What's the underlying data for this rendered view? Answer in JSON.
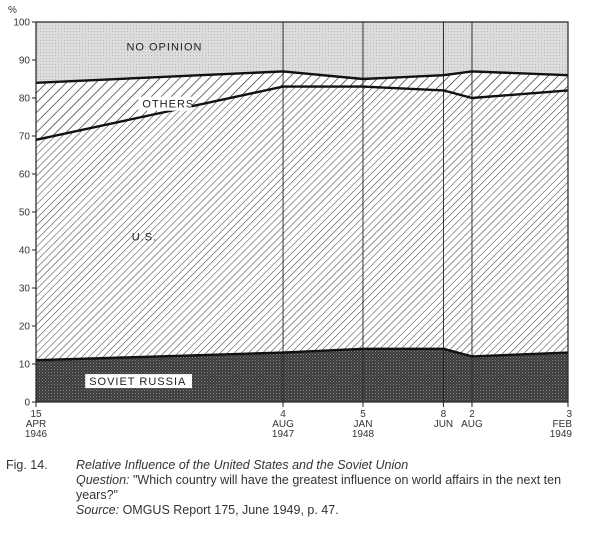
{
  "chart_data": {
    "type": "area",
    "stacked": true,
    "y_unit": "%",
    "ylim": [
      0,
      100
    ],
    "y_ticks": [
      0,
      10,
      20,
      30,
      40,
      50,
      60,
      70,
      80,
      90,
      100
    ],
    "x_dates": [
      "1946-04-15",
      "1947-08-04",
      "1948-01-05",
      "1948-06-08",
      "1948-08-02",
      "1949-02-03"
    ],
    "x_tick_labels": [
      [
        "15",
        "APR",
        "1946"
      ],
      [
        "4",
        "AUG",
        "1947"
      ],
      [
        "5",
        "JAN",
        "1948"
      ],
      [
        "8",
        "JUN",
        ""
      ],
      [
        "2",
        "AUG",
        ""
      ],
      [
        "3",
        "FEB",
        "1949"
      ]
    ],
    "series": [
      {
        "name": "SOVIET RUSSIA",
        "values": [
          11,
          13,
          14,
          14,
          12,
          13
        ]
      },
      {
        "name": "U.S.",
        "values": [
          58,
          70,
          69,
          68,
          68,
          69
        ]
      },
      {
        "name": "OTHERS",
        "values": [
          15,
          4,
          2,
          4,
          7,
          4
        ]
      },
      {
        "name": "NO OPINION",
        "values": [
          16,
          13,
          15,
          14,
          13,
          14
        ]
      }
    ],
    "grid_vertical_at_ticks": true,
    "grid_horizontal": false,
    "legend": "none"
  },
  "caption": {
    "fig_label": "Fig. 14.",
    "title": "Relative Influence of the United States and the Soviet Union",
    "question_lead": "Question:",
    "question_text": " \"Which country will have the greatest influence on world affairs in the next ten years?\"",
    "source_lead": "Source:",
    "source_text": " OMGUS Report 175, June 1949, p. 47."
  }
}
